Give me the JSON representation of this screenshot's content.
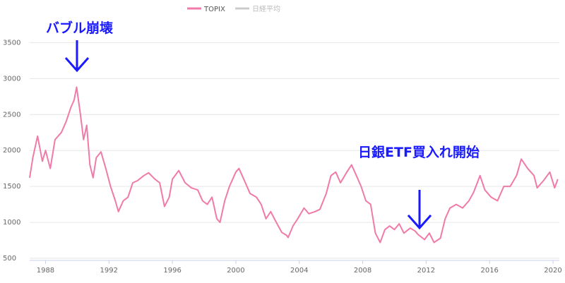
{
  "chart_data": {
    "type": "line",
    "x_range": [
      1987.0,
      2020.4
    ],
    "ylim": [
      500,
      3700
    ],
    "y_ticks": [
      500,
      1000,
      1500,
      2000,
      2500,
      3000,
      3500
    ],
    "x_ticks": [
      1988,
      1992,
      1996,
      2000,
      2004,
      2008,
      2012,
      2016,
      2020
    ],
    "grid": "horizontal",
    "legend": {
      "placement": "top-center"
    },
    "series": [
      {
        "name": "TOPIX",
        "color": "#f07aa8",
        "active": true,
        "points": [
          [
            1987.0,
            1620
          ],
          [
            1987.2,
            1900
          ],
          [
            1987.5,
            2200
          ],
          [
            1987.8,
            1850
          ],
          [
            1988.0,
            2000
          ],
          [
            1988.3,
            1750
          ],
          [
            1988.6,
            2150
          ],
          [
            1989.0,
            2250
          ],
          [
            1989.3,
            2400
          ],
          [
            1989.6,
            2600
          ],
          [
            1989.8,
            2700
          ],
          [
            1989.96,
            2880
          ],
          [
            1990.2,
            2500
          ],
          [
            1990.4,
            2150
          ],
          [
            1990.6,
            2350
          ],
          [
            1990.8,
            1800
          ],
          [
            1991.0,
            1620
          ],
          [
            1991.2,
            1900
          ],
          [
            1991.5,
            1980
          ],
          [
            1991.8,
            1750
          ],
          [
            1992.1,
            1500
          ],
          [
            1992.4,
            1300
          ],
          [
            1992.6,
            1150
          ],
          [
            1992.9,
            1300
          ],
          [
            1993.2,
            1350
          ],
          [
            1993.5,
            1550
          ],
          [
            1993.8,
            1580
          ],
          [
            1994.2,
            1650
          ],
          [
            1994.5,
            1690
          ],
          [
            1994.9,
            1600
          ],
          [
            1995.2,
            1550
          ],
          [
            1995.5,
            1220
          ],
          [
            1995.8,
            1350
          ],
          [
            1996.0,
            1600
          ],
          [
            1996.4,
            1720
          ],
          [
            1996.8,
            1550
          ],
          [
            1997.2,
            1480
          ],
          [
            1997.6,
            1450
          ],
          [
            1997.9,
            1300
          ],
          [
            1998.2,
            1250
          ],
          [
            1998.5,
            1350
          ],
          [
            1998.8,
            1050
          ],
          [
            1999.0,
            1000
          ],
          [
            1999.3,
            1300
          ],
          [
            1999.6,
            1500
          ],
          [
            2000.0,
            1700
          ],
          [
            2000.2,
            1750
          ],
          [
            2000.6,
            1550
          ],
          [
            2000.9,
            1400
          ],
          [
            2001.3,
            1350
          ],
          [
            2001.6,
            1250
          ],
          [
            2001.9,
            1050
          ],
          [
            2002.2,
            1150
          ],
          [
            2002.5,
            1020
          ],
          [
            2002.9,
            860
          ],
          [
            2003.2,
            820
          ],
          [
            2003.3,
            790
          ],
          [
            2003.6,
            950
          ],
          [
            2003.9,
            1050
          ],
          [
            2004.3,
            1200
          ],
          [
            2004.6,
            1120
          ],
          [
            2005.0,
            1150
          ],
          [
            2005.3,
            1180
          ],
          [
            2005.7,
            1400
          ],
          [
            2006.0,
            1650
          ],
          [
            2006.3,
            1700
          ],
          [
            2006.6,
            1550
          ],
          [
            2007.0,
            1700
          ],
          [
            2007.3,
            1800
          ],
          [
            2007.6,
            1650
          ],
          [
            2007.9,
            1500
          ],
          [
            2008.2,
            1300
          ],
          [
            2008.5,
            1250
          ],
          [
            2008.8,
            850
          ],
          [
            2009.1,
            720
          ],
          [
            2009.4,
            900
          ],
          [
            2009.7,
            950
          ],
          [
            2010.0,
            900
          ],
          [
            2010.3,
            980
          ],
          [
            2010.6,
            850
          ],
          [
            2011.0,
            920
          ],
          [
            2011.3,
            880
          ],
          [
            2011.5,
            830
          ],
          [
            2011.9,
            760
          ],
          [
            2012.2,
            850
          ],
          [
            2012.5,
            720
          ],
          [
            2012.9,
            780
          ],
          [
            2013.2,
            1050
          ],
          [
            2013.5,
            1200
          ],
          [
            2013.9,
            1250
          ],
          [
            2014.3,
            1200
          ],
          [
            2014.7,
            1300
          ],
          [
            2015.0,
            1420
          ],
          [
            2015.4,
            1650
          ],
          [
            2015.7,
            1450
          ],
          [
            2016.1,
            1350
          ],
          [
            2016.5,
            1300
          ],
          [
            2016.9,
            1500
          ],
          [
            2017.3,
            1500
          ],
          [
            2017.7,
            1650
          ],
          [
            2018.0,
            1880
          ],
          [
            2018.4,
            1750
          ],
          [
            2018.8,
            1650
          ],
          [
            2019.0,
            1480
          ],
          [
            2019.4,
            1580
          ],
          [
            2019.8,
            1700
          ],
          [
            2020.1,
            1480
          ],
          [
            2020.3,
            1600
          ]
        ]
      },
      {
        "name": "日経平均",
        "color": "#cccccc",
        "active": false,
        "points": []
      }
    ],
    "annotations": [
      {
        "text": "バブル崩壊",
        "x": 1989.96,
        "y": 2880
      },
      {
        "text": "日銀ETF買入れ開始",
        "x": 2011.5,
        "y": 830
      }
    ]
  }
}
